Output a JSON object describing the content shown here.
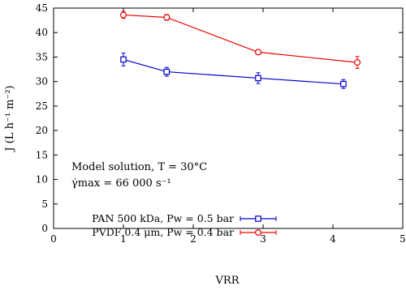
{
  "chart_data": {
    "type": "line",
    "xlabel": "VRR",
    "ylabel": "J (L h⁻¹ m⁻²)",
    "xlim": [
      0,
      5
    ],
    "ylim": [
      0,
      45
    ],
    "xticks": [
      0,
      1,
      2,
      3,
      4,
      5
    ],
    "yticks": [
      0,
      5,
      10,
      15,
      20,
      25,
      30,
      35,
      40,
      45
    ],
    "grid": false,
    "legend_position": "bottom-left",
    "annotations": [
      "Model solution, T = 30°C",
      "γ̇max = 66 000 s⁻¹"
    ],
    "series": [
      {
        "name": "PAN 500 kDa, Pw = 0.5 bar",
        "color": "#0000cc",
        "marker": "square",
        "x": [
          1.0,
          1.62,
          2.93,
          4.15
        ],
        "y": [
          34.5,
          32.0,
          30.7,
          29.5
        ],
        "yerr": [
          1.3,
          0.9,
          1.1,
          0.9
        ]
      },
      {
        "name": "PVDF 0.4 μm, Pw = 0.4 bar",
        "color": "#ee0000",
        "marker": "circle",
        "x": [
          1.0,
          1.62,
          2.93,
          4.35
        ],
        "y": [
          43.6,
          43.1,
          36.0,
          33.9
        ],
        "yerr": [
          0.7,
          0.6,
          0.5,
          1.2
        ]
      }
    ]
  }
}
